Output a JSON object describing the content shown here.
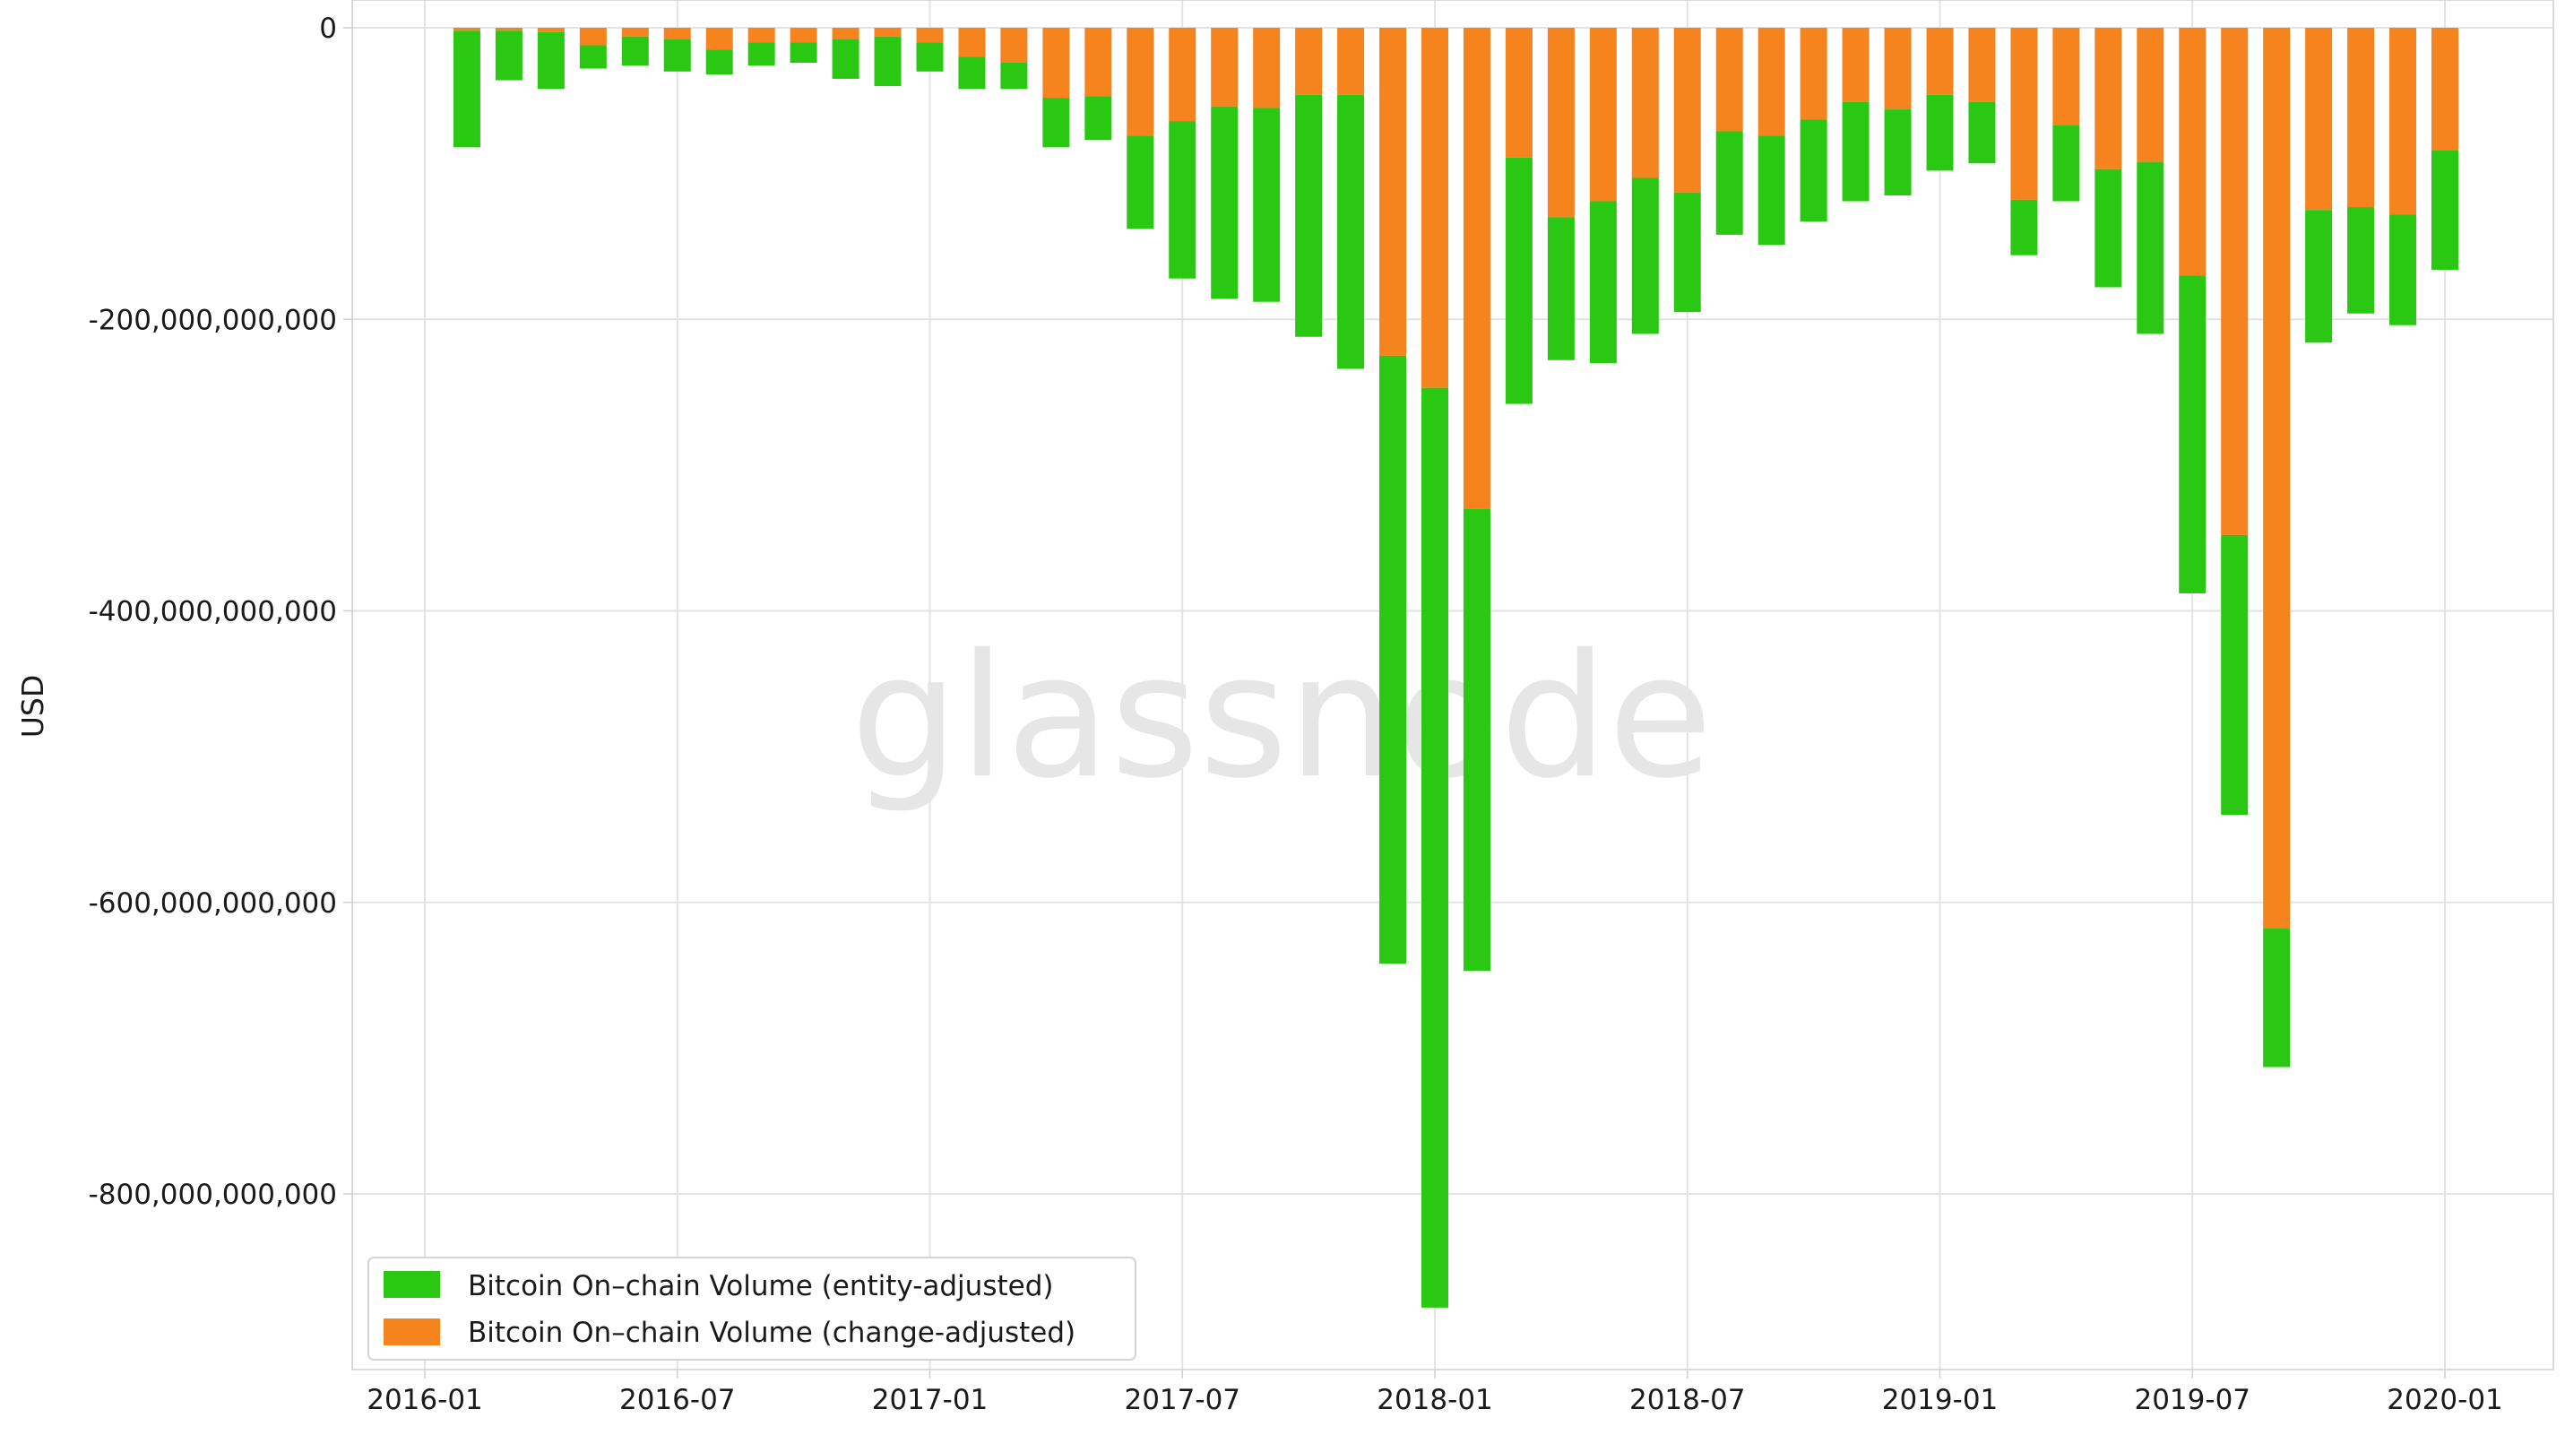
{
  "chart_data": {
    "type": "bar",
    "stacked": true,
    "watermark": "glassnode",
    "ylabel": "USD",
    "ylim": [
      -932000000000,
      0
    ],
    "y_ticks": [
      0,
      -200000000000,
      -400000000000,
      -600000000000,
      -800000000000
    ],
    "y_tick_labels": [
      "0",
      "-200,000,000,000",
      "-400,000,000,000",
      "-600,000,000,000",
      "-800,000,000,000"
    ],
    "x_ticks": [
      "2016-01",
      "2016-07",
      "2017-01",
      "2017-07",
      "2018-01",
      "2018-07",
      "2019-01",
      "2019-07",
      "2020-01"
    ],
    "grid": true,
    "legend_position": "bottom-left",
    "categories": [
      "2016-02",
      "2016-03",
      "2016-04",
      "2016-05",
      "2016-06",
      "2016-07",
      "2016-08",
      "2016-09",
      "2016-10",
      "2016-11",
      "2016-12",
      "2017-01",
      "2017-02",
      "2017-03",
      "2017-04",
      "2017-05",
      "2017-06",
      "2017-07",
      "2017-08",
      "2017-09",
      "2017-10",
      "2017-11",
      "2017-12",
      "2018-01",
      "2018-02",
      "2018-03",
      "2018-04",
      "2018-05",
      "2018-06",
      "2018-07",
      "2018-08",
      "2018-09",
      "2018-10",
      "2018-11",
      "2018-12",
      "2019-01",
      "2019-02",
      "2019-03",
      "2019-04",
      "2019-05",
      "2019-06",
      "2019-07",
      "2019-08",
      "2019-09",
      "2019-10",
      "2019-11",
      "2019-12",
      "2020-01"
    ],
    "series": [
      {
        "name": "Bitcoin On–chain Volume (change-adjusted)",
        "color": "#f5841f",
        "values": [
          -2000000000,
          -2000000000,
          -3000000000,
          -12000000000,
          -6000000000,
          -8000000000,
          -15000000000,
          -10000000000,
          -10000000000,
          -8000000000,
          -6000000000,
          -10000000000,
          -20000000000,
          -24000000000,
          -48000000000,
          -47000000000,
          -74000000000,
          -64000000000,
          -54000000000,
          -55000000000,
          -46000000000,
          -46000000000,
          -225000000000,
          -247000000000,
          -330000000000,
          -89000000000,
          -130000000000,
          -119000000000,
          -103000000000,
          -113000000000,
          -71000000000,
          -74000000000,
          -63000000000,
          -51000000000,
          -56000000000,
          -46000000000,
          -51000000000,
          -118000000000,
          -67000000000,
          -97000000000,
          -92000000000,
          -170000000000,
          -348000000000,
          -618000000000,
          -125000000000,
          -123000000000,
          -128000000000,
          -84000000000
        ]
      },
      {
        "name": "Bitcoin On–chain Volume (entity-adjusted)",
        "color": "#2ac713",
        "values": [
          -80000000000,
          -34000000000,
          -39000000000,
          -16000000000,
          -20000000000,
          -22000000000,
          -17000000000,
          -16000000000,
          -14000000000,
          -27000000000,
          -34000000000,
          -20000000000,
          -22000000000,
          -18000000000,
          -34000000000,
          -30000000000,
          -64000000000,
          -108000000000,
          -132000000000,
          -133000000000,
          -166000000000,
          -188000000000,
          -417000000000,
          -631000000000,
          -317000000000,
          -169000000000,
          -98000000000,
          -111000000000,
          -107000000000,
          -82000000000,
          -71000000000,
          -75000000000,
          -70000000000,
          -68000000000,
          -59000000000,
          -52000000000,
          -42000000000,
          -38000000000,
          -52000000000,
          -81000000000,
          -118000000000,
          -218000000000,
          -192000000000,
          -95000000000,
          -91000000000,
          -73000000000,
          -76000000000,
          -82000000000
        ]
      }
    ],
    "legend": [
      {
        "label": "Bitcoin On–chain Volume (entity-adjusted)",
        "color": "#2ac713"
      },
      {
        "label": "Bitcoin On–chain Volume (change-adjusted)",
        "color": "#f5841f"
      }
    ]
  }
}
